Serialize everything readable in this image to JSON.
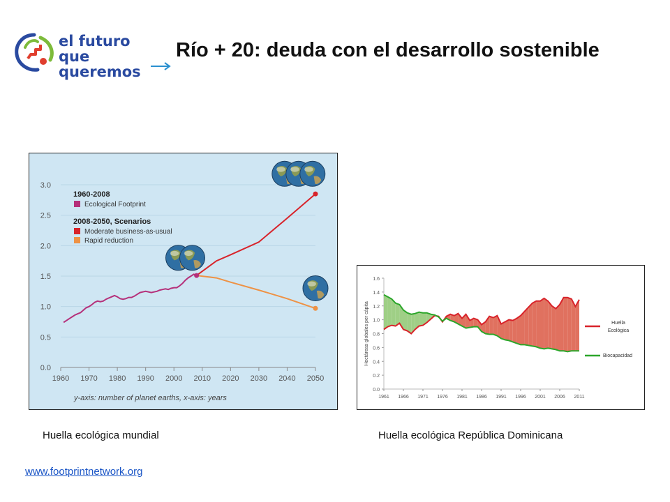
{
  "slide": {
    "title": "Río + 20: deuda con el desarrollo sostenible",
    "logo": {
      "line1": "el futuro",
      "line2": "que queremos",
      "icon": "spiral-people-logo"
    },
    "caption_left": "Huella ecológica mundial",
    "caption_right": "Huella ecológica República Dominicana",
    "source": "www.footprintnetwork.org"
  },
  "colors": {
    "chart1_bg": "#cfe6f3",
    "footprint": "#b5307a",
    "moderate": "#d8232a",
    "rapid": "#ee9245",
    "dr_footprint": "#d8232a",
    "dr_biocapacity": "#2ca62a",
    "deficit_fill": "#e0715f",
    "reserve_fill": "#9fcf86"
  },
  "chart_data": [
    {
      "type": "line",
      "xlim": [
        1960,
        2050
      ],
      "ylim": [
        0,
        3.0
      ],
      "xticks": [
        "1960",
        "1970",
        "1980",
        "1990",
        "2000",
        "2010",
        "2020",
        "2030",
        "2040",
        "2050"
      ],
      "yticks": [
        "0.0",
        "0.5",
        "1.0",
        "1.5",
        "2.0",
        "2.5",
        "3.0"
      ],
      "grid": true,
      "legend_placement": "top-left",
      "legend": {
        "heading1": "1960-2008",
        "heading2": "2008-2050, Scenarios"
      },
      "footnote": "y-axis: number of planet earths, x-axis: years",
      "series": [
        {
          "name": "Ecological Footprint",
          "color_key": "footprint",
          "x": [
            1961,
            1962,
            1963,
            1964,
            1965,
            1966,
            1967,
            1968,
            1969,
            1970,
            1971,
            1972,
            1973,
            1974,
            1975,
            1976,
            1977,
            1978,
            1979,
            1980,
            1981,
            1982,
            1983,
            1984,
            1985,
            1986,
            1987,
            1988,
            1989,
            1990,
            1991,
            1992,
            1993,
            1994,
            1995,
            1996,
            1997,
            1998,
            1999,
            2000,
            2001,
            2002,
            2003,
            2004,
            2005,
            2006,
            2007,
            2008
          ],
          "y": [
            0.74,
            0.77,
            0.8,
            0.83,
            0.86,
            0.88,
            0.9,
            0.94,
            0.98,
            1.0,
            1.03,
            1.07,
            1.09,
            1.08,
            1.09,
            1.12,
            1.14,
            1.16,
            1.18,
            1.16,
            1.13,
            1.12,
            1.13,
            1.15,
            1.15,
            1.17,
            1.2,
            1.23,
            1.24,
            1.25,
            1.24,
            1.23,
            1.24,
            1.25,
            1.27,
            1.28,
            1.29,
            1.28,
            1.3,
            1.31,
            1.31,
            1.34,
            1.38,
            1.43,
            1.47,
            1.5,
            1.53,
            1.51
          ]
        },
        {
          "name": "Moderate business-as-usual",
          "color_key": "moderate",
          "x": [
            2008,
            2015,
            2020,
            2030,
            2040,
            2050
          ],
          "y": [
            1.51,
            1.75,
            1.85,
            2.06,
            2.45,
            2.85
          ]
        },
        {
          "name": "Rapid reduction",
          "color_key": "rapid",
          "x": [
            2008,
            2015,
            2020,
            2030,
            2040,
            2050
          ],
          "y": [
            1.51,
            1.47,
            1.4,
            1.27,
            1.13,
            0.97
          ]
        }
      ],
      "planet_icons": [
        {
          "name": "planet-earth-icon",
          "count": 2,
          "anchor_x": 2005,
          "anchor_y": 1.8
        },
        {
          "name": "planet-earth-icon",
          "count": 3,
          "anchor_x": 2046,
          "anchor_y": 3.18
        },
        {
          "name": "planet-earth-icon",
          "count": 1,
          "anchor_x": 2050,
          "anchor_y": 1.3
        }
      ]
    },
    {
      "type": "area",
      "xlim": [
        1961,
        2011
      ],
      "ylim": [
        0,
        1.6
      ],
      "xticks": [
        "1961",
        "1966",
        "1971",
        "1976",
        "1981",
        "1986",
        "1991",
        "1996",
        "2001",
        "2006",
        "2011"
      ],
      "yticks": [
        "0.0",
        "0.2",
        "0.4",
        "0.6",
        "0.8",
        "1.0",
        "1.2",
        "1.4",
        "1.6"
      ],
      "ylabel": "Hectáreas globales per cápita",
      "legend_placement": "right",
      "series": [
        {
          "name": "Huella Ecológica",
          "color_key": "dr_footprint",
          "x": [
            1961,
            1962,
            1963,
            1964,
            1965,
            1966,
            1967,
            1968,
            1969,
            1970,
            1971,
            1972,
            1973,
            1974,
            1975,
            1976,
            1977,
            1978,
            1979,
            1980,
            1981,
            1982,
            1983,
            1984,
            1985,
            1986,
            1987,
            1988,
            1989,
            1990,
            1991,
            1992,
            1993,
            1994,
            1995,
            1996,
            1997,
            1998,
            1999,
            2000,
            2001,
            2002,
            2003,
            2004,
            2005,
            2006,
            2007,
            2008,
            2009,
            2010,
            2011
          ],
          "y": [
            0.86,
            0.9,
            0.92,
            0.91,
            0.95,
            0.86,
            0.84,
            0.8,
            0.86,
            0.91,
            0.92,
            0.96,
            1.01,
            1.06,
            1.05,
            0.97,
            1.05,
            1.08,
            1.06,
            1.09,
            1.02,
            1.08,
            0.99,
            1.02,
            1.0,
            0.93,
            0.97,
            1.05,
            1.03,
            1.06,
            0.94,
            0.97,
            1.0,
            0.99,
            1.02,
            1.06,
            1.12,
            1.18,
            1.24,
            1.27,
            1.27,
            1.31,
            1.27,
            1.2,
            1.16,
            1.22,
            1.32,
            1.32,
            1.3,
            1.19,
            1.29
          ]
        },
        {
          "name": "Biocapacidad",
          "color_key": "dr_biocapacity",
          "x": [
            1961,
            1962,
            1963,
            1964,
            1965,
            1966,
            1967,
            1968,
            1969,
            1970,
            1971,
            1972,
            1973,
            1974,
            1975,
            1976,
            1977,
            1978,
            1979,
            1980,
            1981,
            1982,
            1983,
            1984,
            1985,
            1986,
            1987,
            1988,
            1989,
            1990,
            1991,
            1992,
            1993,
            1994,
            1995,
            1996,
            1997,
            1998,
            1999,
            2000,
            2001,
            2002,
            2003,
            2004,
            2005,
            2006,
            2007,
            2008,
            2009,
            2010,
            2011
          ],
          "y": [
            1.36,
            1.33,
            1.3,
            1.24,
            1.22,
            1.14,
            1.1,
            1.08,
            1.09,
            1.11,
            1.1,
            1.1,
            1.08,
            1.07,
            1.04,
            0.98,
            1.02,
            0.99,
            0.97,
            0.94,
            0.91,
            0.88,
            0.89,
            0.9,
            0.9,
            0.83,
            0.8,
            0.79,
            0.79,
            0.77,
            0.73,
            0.71,
            0.7,
            0.68,
            0.66,
            0.64,
            0.64,
            0.63,
            0.62,
            0.61,
            0.59,
            0.58,
            0.59,
            0.58,
            0.57,
            0.55,
            0.55,
            0.54,
            0.55,
            0.55,
            0.55
          ]
        }
      ]
    }
  ]
}
